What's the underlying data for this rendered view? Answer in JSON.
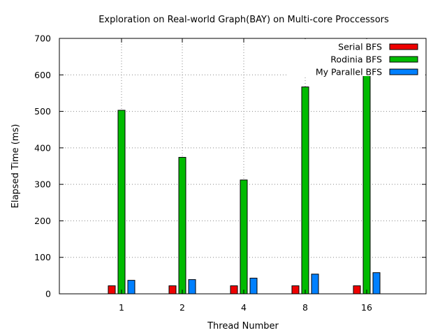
{
  "chart_data": {
    "type": "bar",
    "title": "Exploration on Real-world Graph(BAY) on Multi-core Proccessors",
    "xlabel": "Thread Number",
    "ylabel": "Elapsed Time (ms)",
    "categories": [
      "1",
      "2",
      "4",
      "8",
      "16"
    ],
    "ylim": [
      0,
      700
    ],
    "yticks": [
      0,
      100,
      200,
      300,
      400,
      500,
      600,
      700
    ],
    "grid": true,
    "legend_position": "top-right",
    "series": [
      {
        "name": "Serial BFS",
        "color": "#ee0000",
        "values": [
          22,
          22,
          22,
          22,
          22
        ]
      },
      {
        "name": "Rodinia BFS",
        "color": "#00bb00",
        "values": [
          503,
          374,
          312,
          567,
          612
        ]
      },
      {
        "name": "My Parallel BFS",
        "color": "#0080ff",
        "values": [
          37,
          39,
          43,
          54,
          58
        ]
      }
    ]
  }
}
